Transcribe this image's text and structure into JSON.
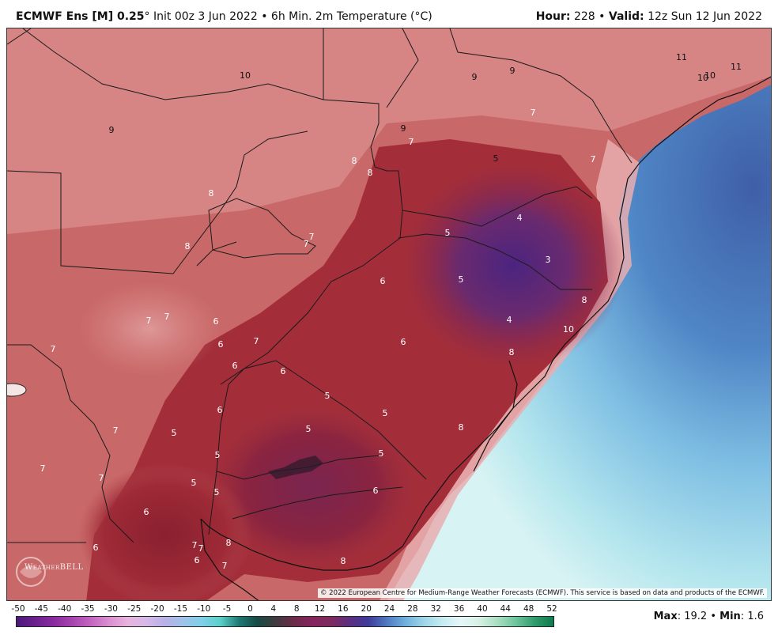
{
  "header": {
    "model": "ECMWF Ens [M] 0.25",
    "degree": "°",
    "init": "Init 00z 3 Jun 2022",
    "bullet": "•",
    "product": "6h Min. 2m Temperature (°C)",
    "hour_label": "Hour:",
    "hour_value": "228",
    "valid_label": "Valid:",
    "valid_value": "12z Sun 12 Jun 2022"
  },
  "map": {
    "labels": [
      "11",
      "10",
      "10",
      "11",
      "9",
      "9",
      "10",
      "9",
      "7",
      "7",
      "9",
      "7",
      "8",
      "8",
      "5",
      "8",
      "4",
      "3",
      "5",
      "5",
      "8",
      "7",
      "7",
      "8",
      "6",
      "10",
      "4",
      "7",
      "7",
      "6",
      "6",
      "7",
      "6",
      "8",
      "6",
      "6",
      "7",
      "5",
      "5",
      "5",
      "8",
      "7",
      "5",
      "6",
      "5",
      "5",
      "5",
      "6",
      "7",
      "5",
      "6",
      "7",
      "8",
      "7",
      "7",
      "6",
      "6",
      "7",
      "8"
    ],
    "copyright": "© 2022 European Centre for Medium-Range Weather Forecasts (ECMWF). This service is based on data and products of the ECMWF.",
    "logo_text": "WeatherBELL"
  },
  "legend": {
    "ticks": [
      "-50",
      "-45",
      "-40",
      "-35",
      "-30",
      "-25",
      "-20",
      "-15",
      "-10",
      "-5",
      "0",
      "4",
      "8",
      "12",
      "16",
      "20",
      "24",
      "28",
      "32",
      "36",
      "40",
      "44",
      "48",
      "52"
    ],
    "colors": [
      "#4a1a7a",
      "#6b1f8e",
      "#8a2aa0",
      "#a843ae",
      "#c465c0",
      "#d98fcf",
      "#e7b3de",
      "#d6b9e8",
      "#b9b1e6",
      "#9fc2ea",
      "#7fd0e8",
      "#5bd1c9",
      "#1f7a72",
      "#174b45",
      "#403a3d",
      "#6b2b4a",
      "#87235d",
      "#7d2a5e",
      "#5b2f82",
      "#3f3a9a",
      "#4f7ac2",
      "#6fb0dd",
      "#9fd6e8",
      "#c6ebf1",
      "#e6f7f8",
      "#d7f0e5",
      "#a7dec0",
      "#6cc49a",
      "#2f9a6a",
      "#0f7a4f"
    ],
    "max_label": "Max",
    "max_value": "19.2",
    "min_label": "Min",
    "min_value": "1.6"
  }
}
